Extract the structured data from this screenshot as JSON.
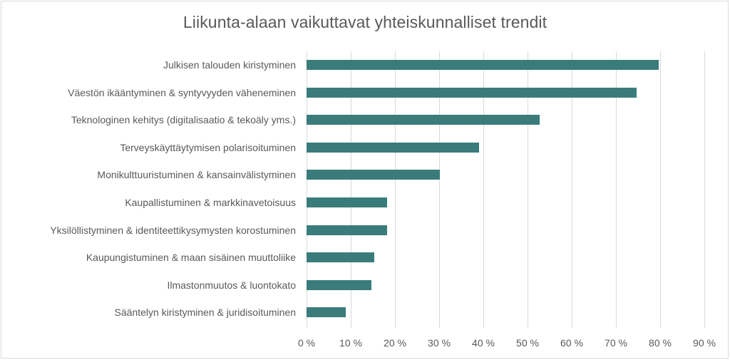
{
  "chart_data": {
    "type": "bar",
    "orientation": "horizontal",
    "title": "Liikunta-alaan vaikuttavat yhteiskunnalliset trendit",
    "xlabel": "",
    "ylabel": "",
    "xlim": [
      0,
      90
    ],
    "grid": true,
    "legend": null,
    "bar_color": "#3A7C7C",
    "categories": [
      "Julkisen talouden kiristyminen",
      "Väestön ikääntyminen & syntyvyyden väheneminen",
      "Teknologinen kehitys (digitalisaatio & tekoäly yms.)",
      "Terveyskäyttäytymisen polarisoituminen",
      "Monikulttuuristuminen & kansainvälistyminen",
      "Kaupallistuminen & markkinavetoisuus",
      "Yksilöllistyminen & identiteettikysymysten korostuminen",
      "Kaupungistuminen & maan sisäinen muuttoliike",
      "Ilmastonmuutos & luontokato",
      "Sääntelyn kiristyminen & juridisoituminen"
    ],
    "values": [
      79.7,
      74.6,
      52.7,
      39.1,
      30.2,
      18.2,
      18.2,
      15.4,
      14.7,
      8.9
    ],
    "x_ticks": [
      "0 %",
      "10 %",
      "20 %",
      "30 %",
      "40 %",
      "50 %",
      "60 %",
      "70 %",
      "80 %",
      "90 %"
    ]
  }
}
